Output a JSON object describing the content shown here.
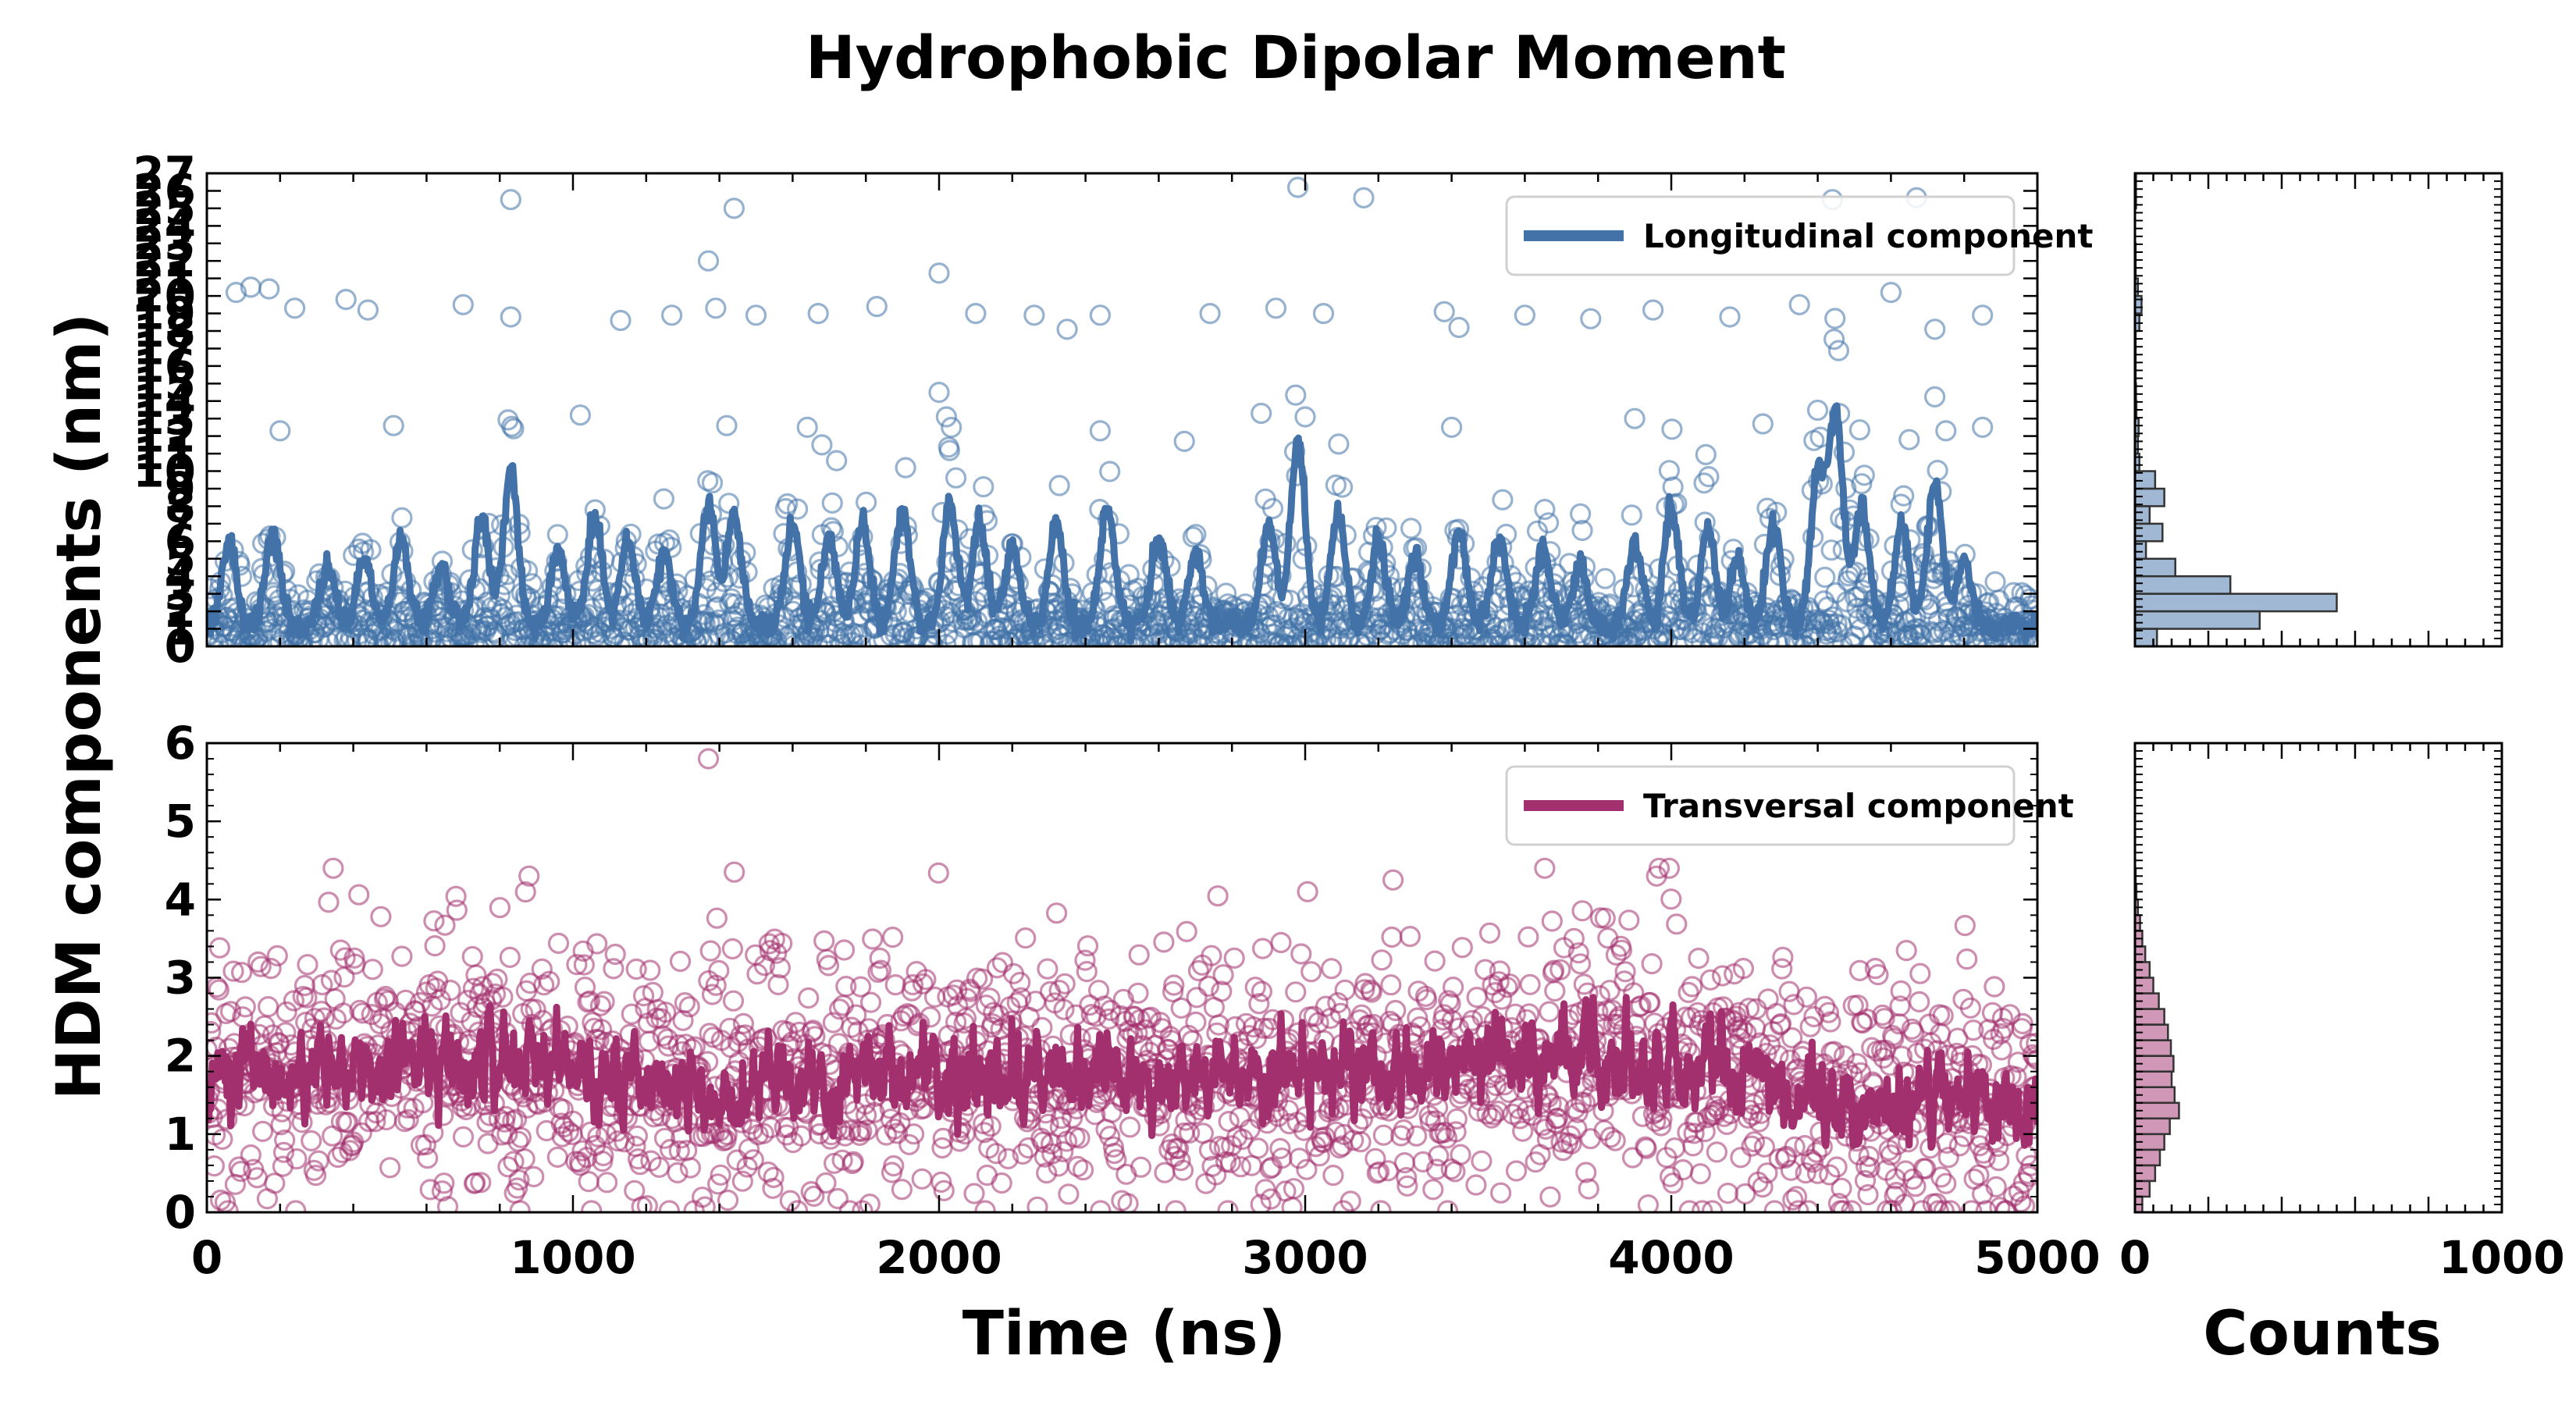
{
  "chart_data": {
    "title": "Hydrophobic Dipolar Moment",
    "ylabel": "HDM components (nm)",
    "panels": [
      {
        "id": "longitudinal",
        "type": "scatter+line",
        "xlabel": "",
        "xlim": [
          0,
          5000
        ],
        "ylim": [
          0,
          27
        ],
        "yticks": [
          0,
          1,
          2,
          3,
          4,
          5,
          6,
          7,
          8,
          9,
          10,
          11,
          12,
          13,
          14,
          15,
          16,
          17,
          18,
          19,
          20,
          21,
          22,
          23,
          24,
          25,
          26,
          27
        ],
        "color": "#4272a8",
        "legend": "Longitudinal component",
        "legend_position": "top-right",
        "series_seed": 7,
        "n_points": 2000,
        "baseline": 1.2,
        "peaks": [
          {
            "x": 60,
            "y": 6.0
          },
          {
            "x": 180,
            "y": 6.5
          },
          {
            "x": 330,
            "y": 4.5
          },
          {
            "x": 430,
            "y": 5.2
          },
          {
            "x": 530,
            "y": 6.2
          },
          {
            "x": 640,
            "y": 4.5
          },
          {
            "x": 750,
            "y": 7.3
          },
          {
            "x": 830,
            "y": 10.0
          },
          {
            "x": 960,
            "y": 5.5
          },
          {
            "x": 1060,
            "y": 7.5
          },
          {
            "x": 1150,
            "y": 6.0
          },
          {
            "x": 1250,
            "y": 5.5
          },
          {
            "x": 1370,
            "y": 8.2
          },
          {
            "x": 1440,
            "y": 7.5
          },
          {
            "x": 1600,
            "y": 7.0
          },
          {
            "x": 1700,
            "y": 6.2
          },
          {
            "x": 1790,
            "y": 7.0
          },
          {
            "x": 1900,
            "y": 7.8
          },
          {
            "x": 2030,
            "y": 8.0
          },
          {
            "x": 2110,
            "y": 7.0
          },
          {
            "x": 2200,
            "y": 5.5
          },
          {
            "x": 2320,
            "y": 7.0
          },
          {
            "x": 2460,
            "y": 8.0
          },
          {
            "x": 2600,
            "y": 6.3
          },
          {
            "x": 2700,
            "y": 5.3
          },
          {
            "x": 2900,
            "y": 7.0
          },
          {
            "x": 2980,
            "y": 11.5
          },
          {
            "x": 3090,
            "y": 7.5
          },
          {
            "x": 3200,
            "y": 6.0
          },
          {
            "x": 3300,
            "y": 5.0
          },
          {
            "x": 3420,
            "y": 6.6
          },
          {
            "x": 3530,
            "y": 6.2
          },
          {
            "x": 3650,
            "y": 5.5
          },
          {
            "x": 3750,
            "y": 4.5
          },
          {
            "x": 3900,
            "y": 6.0
          },
          {
            "x": 4000,
            "y": 8.0
          },
          {
            "x": 4100,
            "y": 6.8
          },
          {
            "x": 4180,
            "y": 5.0
          },
          {
            "x": 4280,
            "y": 7.0
          },
          {
            "x": 4400,
            "y": 9.5
          },
          {
            "x": 4450,
            "y": 13.0
          },
          {
            "x": 4520,
            "y": 8.0
          },
          {
            "x": 4630,
            "y": 7.0
          },
          {
            "x": 4720,
            "y": 9.5
          },
          {
            "x": 4800,
            "y": 5.0
          }
        ],
        "outliers": [
          {
            "x": 830,
            "y": 25.5
          },
          {
            "x": 1440,
            "y": 25.0
          },
          {
            "x": 2980,
            "y": 26.2
          },
          {
            "x": 3160,
            "y": 25.6
          },
          {
            "x": 4440,
            "y": 25.5
          },
          {
            "x": 4670,
            "y": 25.6
          },
          {
            "x": 1370,
            "y": 22.0
          },
          {
            "x": 2000,
            "y": 21.3
          },
          {
            "x": 80,
            "y": 20.2
          },
          {
            "x": 120,
            "y": 20.5
          },
          {
            "x": 170,
            "y": 20.4
          },
          {
            "x": 240,
            "y": 19.3
          },
          {
            "x": 380,
            "y": 19.8
          },
          {
            "x": 440,
            "y": 19.2
          },
          {
            "x": 700,
            "y": 19.5
          },
          {
            "x": 830,
            "y": 18.8
          },
          {
            "x": 1130,
            "y": 18.6
          },
          {
            "x": 1270,
            "y": 18.9
          },
          {
            "x": 1390,
            "y": 19.3
          },
          {
            "x": 1500,
            "y": 18.9
          },
          {
            "x": 1670,
            "y": 19.0
          },
          {
            "x": 1830,
            "y": 19.4
          },
          {
            "x": 2100,
            "y": 19.0
          },
          {
            "x": 2260,
            "y": 18.9
          },
          {
            "x": 2440,
            "y": 18.9
          },
          {
            "x": 2740,
            "y": 19.0
          },
          {
            "x": 2920,
            "y": 19.3
          },
          {
            "x": 3050,
            "y": 19.0
          },
          {
            "x": 3380,
            "y": 19.1
          },
          {
            "x": 3600,
            "y": 18.9
          },
          {
            "x": 3780,
            "y": 18.7
          },
          {
            "x": 3950,
            "y": 19.2
          },
          {
            "x": 4160,
            "y": 18.8
          },
          {
            "x": 4350,
            "y": 19.5
          },
          {
            "x": 4600,
            "y": 20.2
          },
          {
            "x": 4850,
            "y": 18.9
          },
          {
            "x": 4720,
            "y": 18.1
          },
          {
            "x": 2350,
            "y": 18.1
          },
          {
            "x": 3420,
            "y": 18.2
          },
          {
            "x": 2000,
            "y": 14.5
          },
          {
            "x": 2020,
            "y": 13.1
          },
          {
            "x": 200,
            "y": 12.3
          },
          {
            "x": 510,
            "y": 12.6
          },
          {
            "x": 1020,
            "y": 13.2
          },
          {
            "x": 1420,
            "y": 12.6
          },
          {
            "x": 1640,
            "y": 12.5
          },
          {
            "x": 2440,
            "y": 12.3
          },
          {
            "x": 2880,
            "y": 13.3
          },
          {
            "x": 3000,
            "y": 13.1
          },
          {
            "x": 3400,
            "y": 12.5
          },
          {
            "x": 3900,
            "y": 13.0
          },
          {
            "x": 4250,
            "y": 12.7
          },
          {
            "x": 4750,
            "y": 12.3
          },
          {
            "x": 4850,
            "y": 12.5
          },
          {
            "x": 4650,
            "y": 11.8
          },
          {
            "x": 1680,
            "y": 11.5
          },
          {
            "x": 2670,
            "y": 11.7
          },
          {
            "x": 1720,
            "y": 10.6
          }
        ],
        "hist_counts": [
          {
            "y_from": 0,
            "y_to": 1,
            "count": 60
          },
          {
            "y_from": 1,
            "y_to": 2,
            "count": 340
          },
          {
            "y_from": 2,
            "y_to": 3,
            "count": 550
          },
          {
            "y_from": 3,
            "y_to": 4,
            "count": 260
          },
          {
            "y_from": 4,
            "y_to": 5,
            "count": 110
          },
          {
            "y_from": 5,
            "y_to": 6,
            "count": 30
          },
          {
            "y_from": 6,
            "y_to": 7,
            "count": 75
          },
          {
            "y_from": 7,
            "y_to": 8,
            "count": 40
          },
          {
            "y_from": 8,
            "y_to": 9,
            "count": 80
          },
          {
            "y_from": 9,
            "y_to": 10,
            "count": 55
          },
          {
            "y_from": 10,
            "y_to": 11,
            "count": 12
          },
          {
            "y_from": 11,
            "y_to": 12,
            "count": 8
          },
          {
            "y_from": 12,
            "y_to": 13,
            "count": 10
          },
          {
            "y_from": 13,
            "y_to": 14,
            "count": 4
          },
          {
            "y_from": 14,
            "y_to": 15,
            "count": 3
          },
          {
            "y_from": 15,
            "y_to": 17,
            "count": 2
          },
          {
            "y_from": 17,
            "y_to": 18,
            "count": 2
          },
          {
            "y_from": 18,
            "y_to": 19,
            "count": 12
          },
          {
            "y_from": 19,
            "y_to": 20,
            "count": 18
          },
          {
            "y_from": 20,
            "y_to": 21,
            "count": 8
          },
          {
            "y_from": 21,
            "y_to": 23,
            "count": 2
          },
          {
            "y_from": 25,
            "y_to": 27,
            "count": 3
          }
        ]
      },
      {
        "id": "transversal",
        "type": "scatter+line",
        "xlabel": "Time (ns)",
        "xlim": [
          0,
          5000
        ],
        "ylim": [
          0,
          6
        ],
        "yticks": [
          0,
          1,
          2,
          3,
          4,
          5,
          6
        ],
        "xticks": [
          0,
          1000,
          2000,
          3000,
          4000,
          5000
        ],
        "color": "#a3306e",
        "legend": "Transversal component",
        "legend_position": "top-right",
        "series_seed": 13,
        "n_points": 2000,
        "trend": [
          {
            "x": 0,
            "y": 1.7
          },
          {
            "x": 700,
            "y": 2.0
          },
          {
            "x": 1400,
            "y": 1.6
          },
          {
            "x": 2000,
            "y": 1.8
          },
          {
            "x": 2600,
            "y": 1.75
          },
          {
            "x": 3200,
            "y": 1.8
          },
          {
            "x": 3800,
            "y": 1.95
          },
          {
            "x": 4100,
            "y": 1.85
          },
          {
            "x": 4500,
            "y": 1.35
          },
          {
            "x": 5000,
            "y": 1.25
          }
        ],
        "outliers": [
          {
            "x": 1370,
            "y": 5.8
          },
          {
            "x": 880,
            "y": 4.3
          },
          {
            "x": 3960,
            "y": 4.3
          },
          {
            "x": 3240,
            "y": 4.25
          }
        ],
        "hist_counts": [
          {
            "y_from": 0.0,
            "y_to": 0.2,
            "count": 20
          },
          {
            "y_from": 0.2,
            "y_to": 0.4,
            "count": 40
          },
          {
            "y_from": 0.4,
            "y_to": 0.6,
            "count": 55
          },
          {
            "y_from": 0.6,
            "y_to": 0.8,
            "count": 68
          },
          {
            "y_from": 0.8,
            "y_to": 1.0,
            "count": 80
          },
          {
            "y_from": 1.0,
            "y_to": 1.2,
            "count": 95
          },
          {
            "y_from": 1.2,
            "y_to": 1.4,
            "count": 120
          },
          {
            "y_from": 1.4,
            "y_to": 1.6,
            "count": 108
          },
          {
            "y_from": 1.6,
            "y_to": 1.8,
            "count": 100
          },
          {
            "y_from": 1.8,
            "y_to": 2.0,
            "count": 105
          },
          {
            "y_from": 2.0,
            "y_to": 2.2,
            "count": 98
          },
          {
            "y_from": 2.2,
            "y_to": 2.4,
            "count": 90
          },
          {
            "y_from": 2.4,
            "y_to": 2.6,
            "count": 80
          },
          {
            "y_from": 2.6,
            "y_to": 2.8,
            "count": 65
          },
          {
            "y_from": 2.8,
            "y_to": 3.0,
            "count": 50
          },
          {
            "y_from": 3.0,
            "y_to": 3.2,
            "count": 40
          },
          {
            "y_from": 3.2,
            "y_to": 3.4,
            "count": 28
          },
          {
            "y_from": 3.4,
            "y_to": 3.6,
            "count": 20
          },
          {
            "y_from": 3.6,
            "y_to": 3.8,
            "count": 14
          },
          {
            "y_from": 3.8,
            "y_to": 4.0,
            "count": 8
          },
          {
            "y_from": 4.0,
            "y_to": 4.2,
            "count": 4
          },
          {
            "y_from": 4.2,
            "y_to": 4.4,
            "count": 2
          }
        ]
      }
    ],
    "hist_xlabel": "Counts",
    "hist_xlim": [
      0,
      1000
    ],
    "hist_xticks": [
      0,
      1000
    ]
  }
}
